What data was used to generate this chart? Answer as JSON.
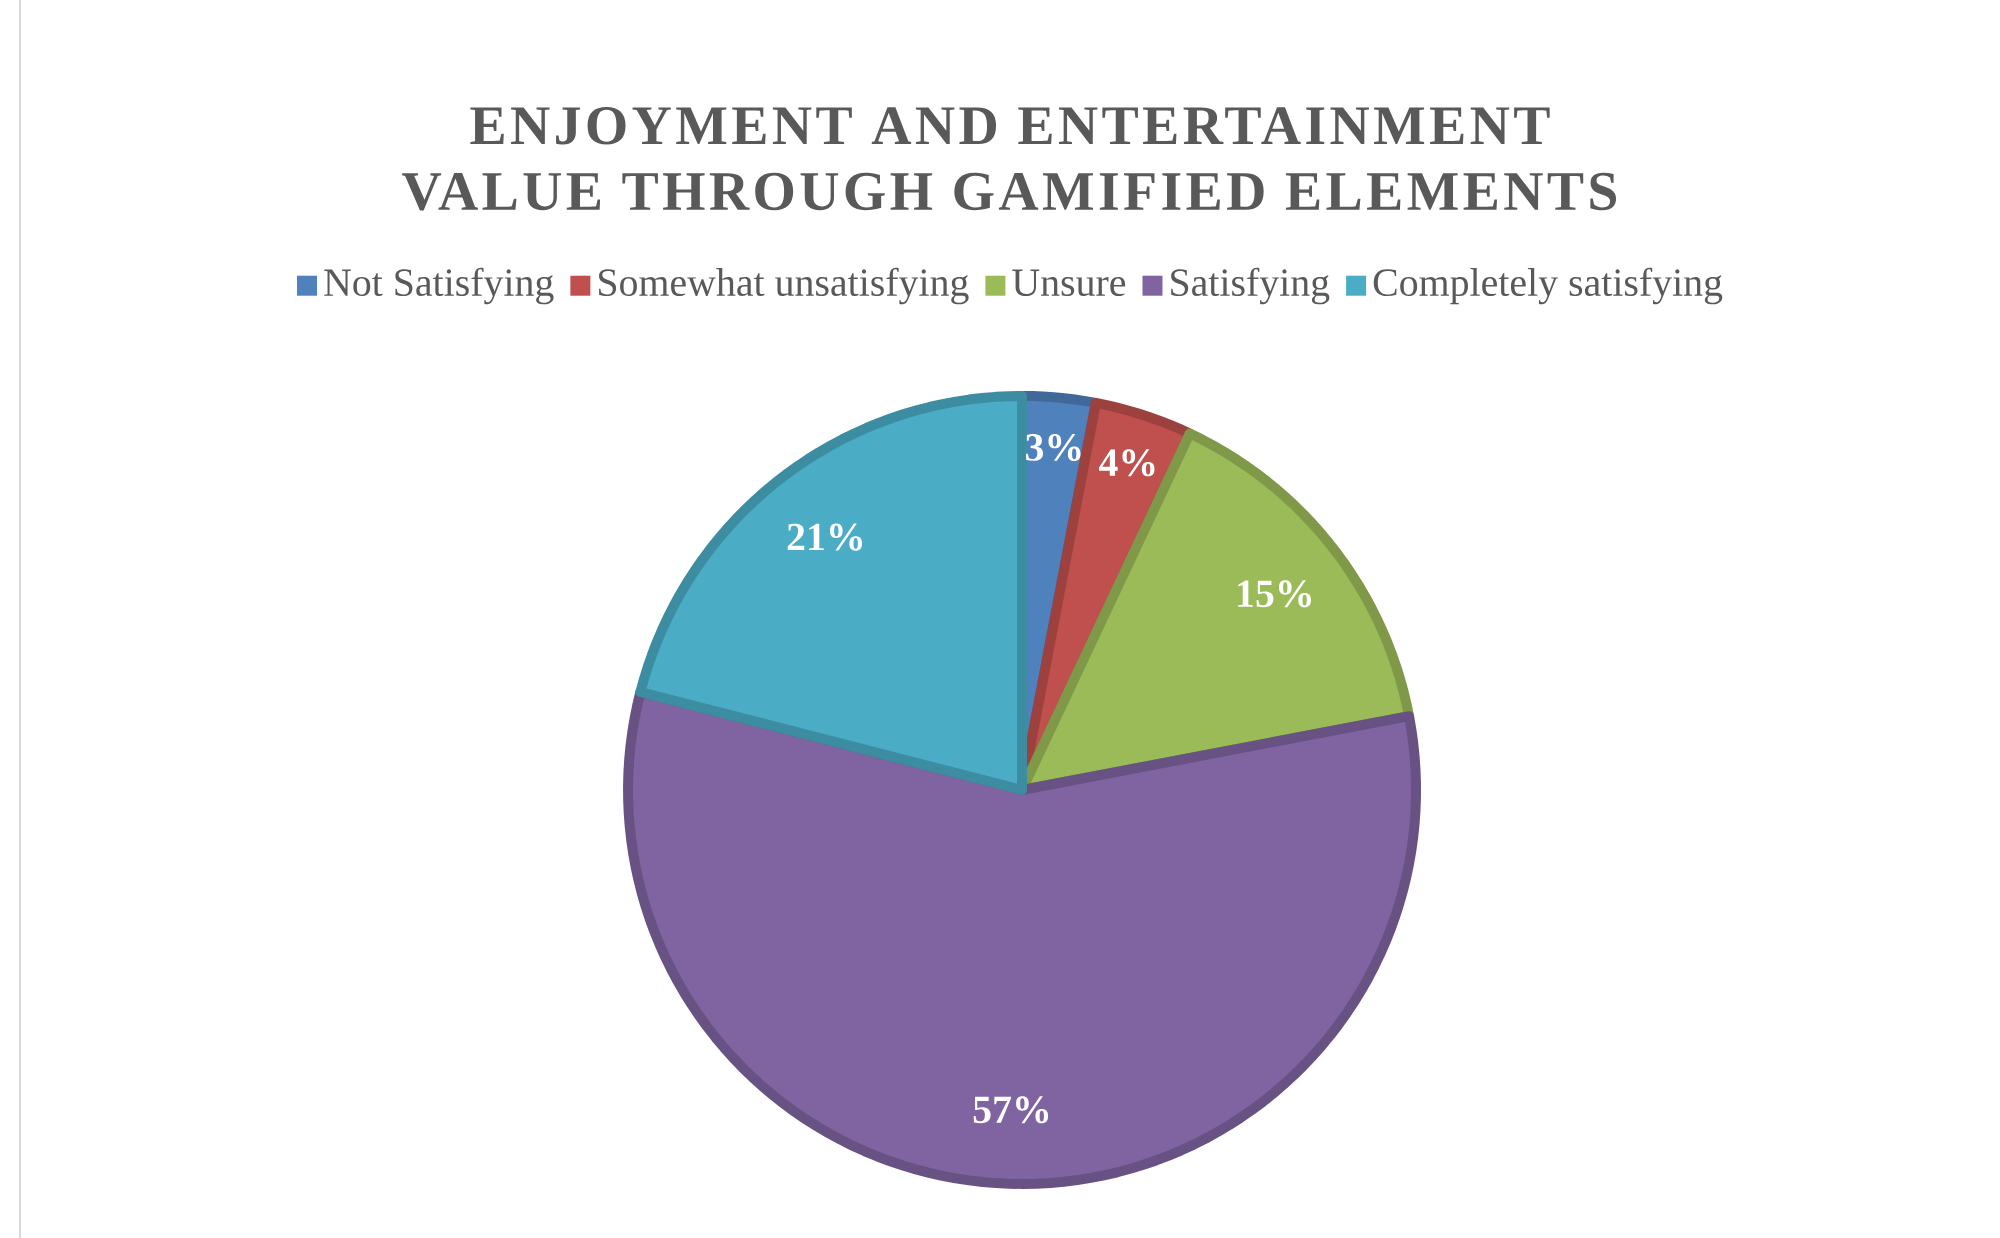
{
  "chart_data": {
    "type": "pie",
    "title": "ENJOYMENT AND ENTERTAINMENT VALUE THROUGH GAMIFIED ELEMENTS",
    "categories": [
      "Not Satisfying",
      "Somewhat unsatisfying",
      "Unsure",
      "Satisfying",
      "Completely satisfying"
    ],
    "values": [
      3,
      4,
      15,
      57,
      21
    ],
    "colors": [
      "#4f81bd",
      "#c0504d",
      "#9bbb59",
      "#8064a2",
      "#4bacc6"
    ],
    "value_labels": [
      "3%",
      "4%",
      "15%",
      "57%",
      "21%"
    ],
    "legend": "top"
  }
}
